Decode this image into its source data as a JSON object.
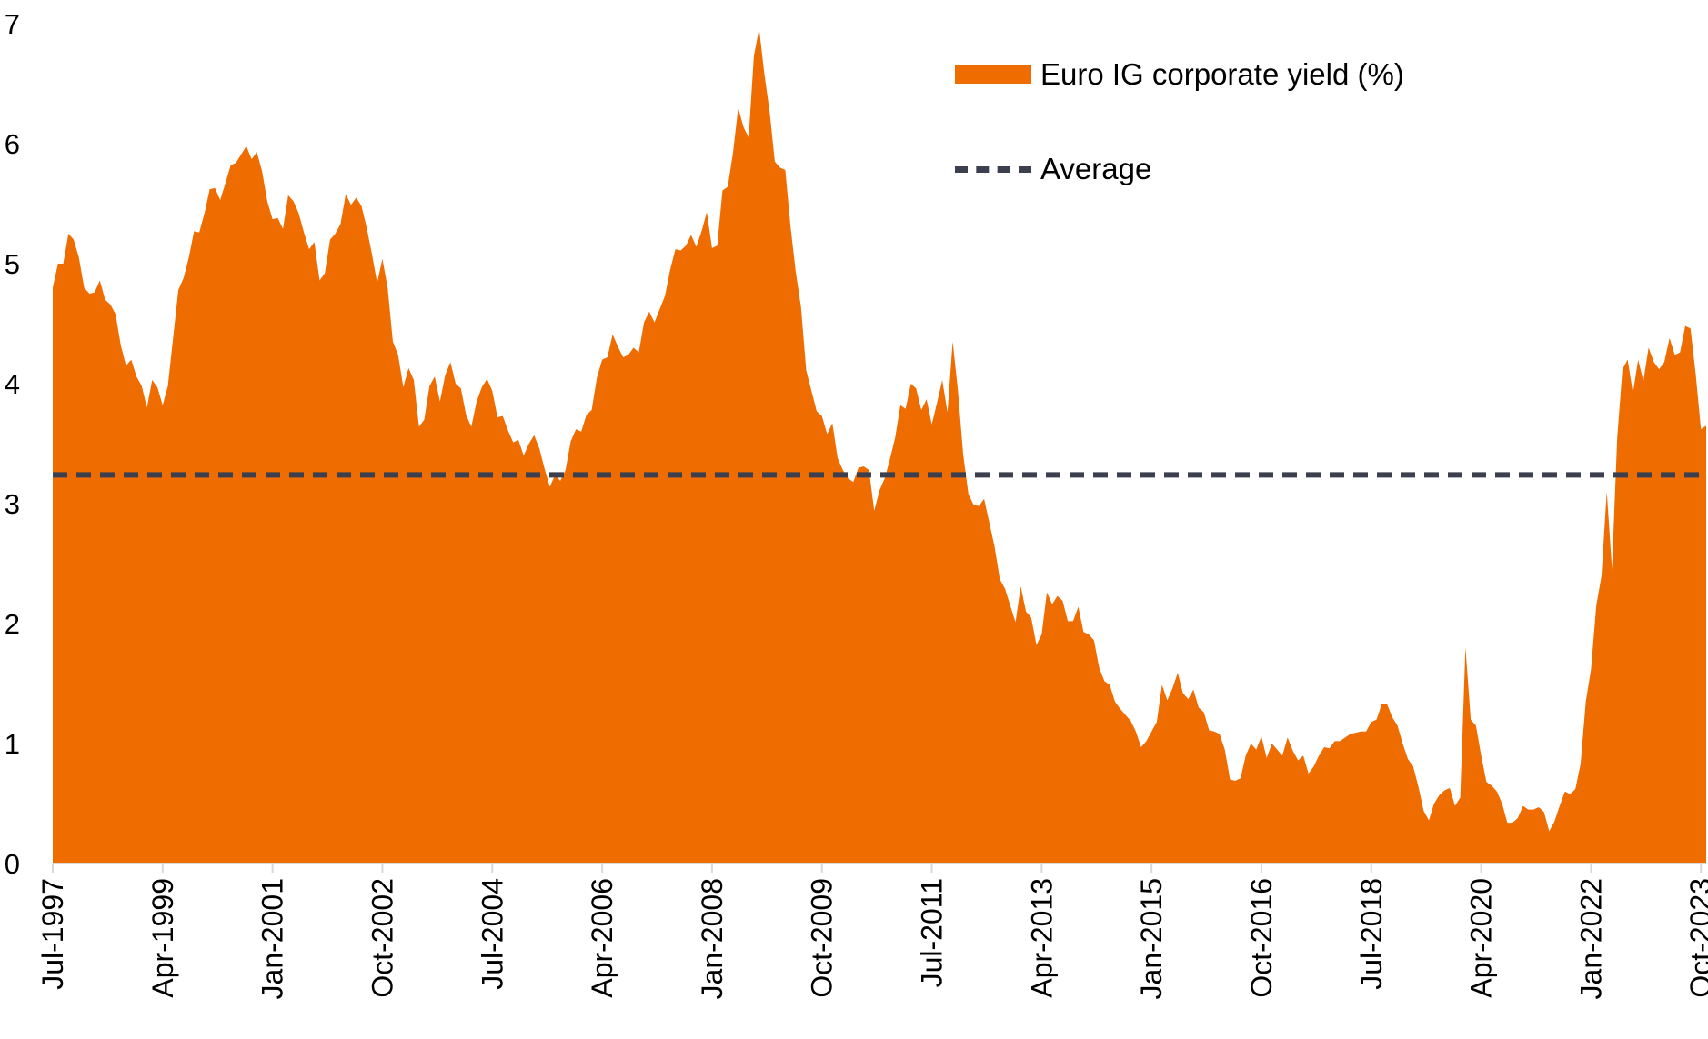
{
  "chart_data": {
    "type": "area",
    "title": "",
    "xlabel": "",
    "ylabel": "",
    "ylim": [
      0,
      7
    ],
    "yticks": [
      "0",
      "1",
      "2",
      "3",
      "4",
      "5",
      "6",
      "7"
    ],
    "xtick_labels": [
      "Jul-1997",
      "Apr-1999",
      "Jan-2001",
      "Oct-2002",
      "Jul-2004",
      "Apr-2006",
      "Jan-2008",
      "Oct-2009",
      "Jul-2011",
      "Apr-2013",
      "Jan-2015",
      "Oct-2016",
      "Jul-2018",
      "Apr-2020",
      "Jan-2022",
      "Oct-2023"
    ],
    "legend_position": "top-right",
    "grid": false,
    "colors": {
      "series": "#ef6c00",
      "average": "#3b3f4e"
    },
    "series": [
      {
        "name": "Euro IG corporate yield (%)",
        "type": "area",
        "x_start": "Jul-1997",
        "frequency": "monthly",
        "values": [
          4.8,
          5.0,
          5.0,
          5.25,
          5.2,
          5.05,
          4.8,
          4.75,
          4.76,
          4.86,
          4.7,
          4.66,
          4.58,
          4.32,
          4.15,
          4.2,
          4.06,
          3.98,
          3.8,
          4.03,
          3.97,
          3.82,
          3.98,
          4.38,
          4.78,
          4.88,
          5.05,
          5.27,
          5.26,
          5.42,
          5.62,
          5.63,
          5.53,
          5.67,
          5.82,
          5.84,
          5.91,
          5.98,
          5.87,
          5.93,
          5.77,
          5.52,
          5.37,
          5.38,
          5.29,
          5.57,
          5.52,
          5.42,
          5.26,
          5.12,
          5.18,
          4.86,
          4.92,
          5.2,
          5.25,
          5.33,
          5.58,
          5.49,
          5.55,
          5.48,
          5.3,
          5.08,
          4.84,
          5.04,
          4.8,
          4.35,
          4.24,
          3.97,
          4.13,
          4.03,
          3.64,
          3.7,
          3.98,
          4.06,
          3.85,
          4.07,
          4.18,
          4.0,
          3.96,
          3.74,
          3.64,
          3.85,
          3.97,
          4.04,
          3.94,
          3.72,
          3.73,
          3.61,
          3.51,
          3.53,
          3.4,
          3.5,
          3.57,
          3.46,
          3.29,
          3.14,
          3.24,
          3.19,
          3.28,
          3.52,
          3.62,
          3.6,
          3.74,
          3.78,
          4.05,
          4.2,
          4.22,
          4.41,
          4.31,
          4.22,
          4.24,
          4.3,
          4.26,
          4.51,
          4.6,
          4.51,
          4.62,
          4.73,
          4.95,
          5.12,
          5.11,
          5.15,
          5.24,
          5.14,
          5.27,
          5.43,
          5.13,
          5.15,
          5.61,
          5.64,
          5.92,
          6.3,
          6.14,
          6.05,
          6.73,
          6.96,
          6.58,
          6.27,
          5.85,
          5.8,
          5.78,
          5.31,
          4.93,
          4.64,
          4.11,
          3.94,
          3.77,
          3.73,
          3.58,
          3.67,
          3.38,
          3.28,
          3.21,
          3.18,
          3.3,
          3.31,
          3.28,
          2.94,
          3.11,
          3.21,
          3.37,
          3.55,
          3.82,
          3.79,
          4.0,
          3.96,
          3.78,
          3.87,
          3.66,
          3.84,
          4.03,
          3.76,
          4.35,
          3.94,
          3.41,
          3.08,
          2.99,
          2.98,
          3.04,
          2.84,
          2.64,
          2.37,
          2.29,
          2.15,
          2.01,
          2.31,
          2.1,
          2.05,
          1.82,
          1.91,
          2.26,
          2.16,
          2.23,
          2.19,
          2.02,
          2.02,
          2.14,
          1.93,
          1.91,
          1.86,
          1.63,
          1.52,
          1.49,
          1.35,
          1.29,
          1.24,
          1.19,
          1.1,
          0.97,
          1.02,
          1.1,
          1.18,
          1.49,
          1.36,
          1.46,
          1.59,
          1.42,
          1.37,
          1.45,
          1.3,
          1.26,
          1.11,
          1.1,
          1.08,
          0.95,
          0.7,
          0.69,
          0.71,
          0.9,
          1.0,
          0.95,
          1.06,
          0.88,
          1.0,
          0.95,
          0.9,
          1.05,
          0.94,
          0.86,
          0.9,
          0.75,
          0.81,
          0.9,
          0.97,
          0.96,
          1.02,
          1.02,
          1.05,
          1.08,
          1.09,
          1.1,
          1.1,
          1.18,
          1.2,
          1.33,
          1.33,
          1.22,
          1.15,
          1.0,
          0.87,
          0.81,
          0.64,
          0.44,
          0.36,
          0.5,
          0.57,
          0.61,
          0.63,
          0.48,
          0.55,
          1.8,
          1.2,
          1.15,
          0.9,
          0.68,
          0.65,
          0.6,
          0.5,
          0.34,
          0.34,
          0.38,
          0.48,
          0.45,
          0.45,
          0.47,
          0.43,
          0.27,
          0.35,
          0.48,
          0.6,
          0.58,
          0.62,
          0.83,
          1.35,
          1.62,
          2.15,
          2.4,
          3.1,
          2.45,
          3.55,
          4.12,
          4.2,
          3.92,
          4.2,
          4.02,
          4.3,
          4.18,
          4.12,
          4.18,
          4.38,
          4.24,
          4.26,
          4.48,
          4.46,
          4.08,
          3.62,
          3.65
        ]
      },
      {
        "name": "Average",
        "type": "line",
        "style": "dashed",
        "value": 3.24
      }
    ]
  }
}
